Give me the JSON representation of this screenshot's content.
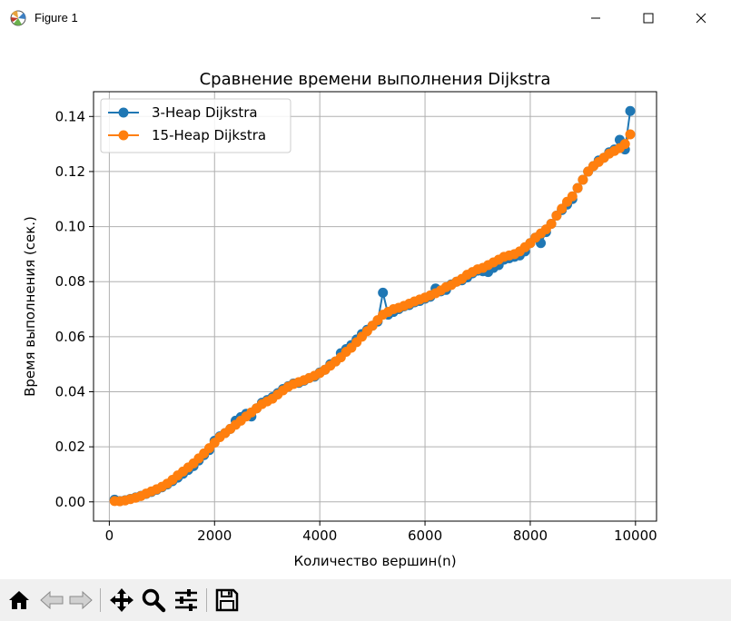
{
  "window": {
    "title": "Figure 1"
  },
  "toolbar": {
    "buttons": [
      {
        "name": "home-button",
        "icon": "home-icon"
      },
      {
        "name": "back-button",
        "icon": "arrow-left-icon"
      },
      {
        "name": "forward-button",
        "icon": "arrow-right-icon"
      },
      {
        "name": "pan-button",
        "icon": "move-icon"
      },
      {
        "name": "zoom-button",
        "icon": "magnifier-icon"
      },
      {
        "name": "configure-subplots-button",
        "icon": "sliders-icon"
      },
      {
        "name": "save-button",
        "icon": "floppy-disk-icon"
      }
    ]
  },
  "colors": {
    "series1": "#1f77b4",
    "series2": "#ff7f0e",
    "grid": "#b0b0b0",
    "toolbar": "#f0f0f0"
  },
  "chart_data": {
    "type": "line",
    "title": "Сравнение времени выполнения Dijkstra",
    "xlabel": "Количество вершин(n)",
    "ylabel": "Время выполнения (сек.)",
    "xlim": [
      -300,
      10400
    ],
    "ylim": [
      -0.007,
      0.149
    ],
    "xticks": [
      0,
      2000,
      4000,
      6000,
      8000,
      10000
    ],
    "xtick_labels": [
      "0",
      "2000",
      "4000",
      "6000",
      "8000",
      "10000"
    ],
    "yticks": [
      0,
      0.02,
      0.04,
      0.06,
      0.08,
      0.1,
      0.12,
      0.14
    ],
    "ytick_labels": [
      "0.00",
      "0.02",
      "0.04",
      "0.06",
      "0.08",
      "0.10",
      "0.12",
      "0.14"
    ],
    "grid": true,
    "legend_position": "upper-left",
    "x": [
      100,
      200,
      300,
      400,
      500,
      600,
      700,
      800,
      900,
      1000,
      1100,
      1200,
      1300,
      1400,
      1500,
      1600,
      1700,
      1800,
      1900,
      2000,
      2100,
      2200,
      2300,
      2400,
      2500,
      2600,
      2700,
      2800,
      2900,
      3000,
      3100,
      3200,
      3300,
      3400,
      3500,
      3600,
      3700,
      3800,
      3900,
      4000,
      4100,
      4200,
      4300,
      4400,
      4500,
      4600,
      4700,
      4800,
      4900,
      5000,
      5100,
      5200,
      5300,
      5400,
      5500,
      5600,
      5700,
      5800,
      5900,
      6000,
      6100,
      6200,
      6300,
      6400,
      6500,
      6600,
      6700,
      6800,
      6900,
      7000,
      7100,
      7200,
      7300,
      7400,
      7500,
      7600,
      7700,
      7800,
      7900,
      8000,
      8100,
      8200,
      8300,
      8400,
      8500,
      8600,
      8700,
      8800,
      8900,
      9000,
      9100,
      9200,
      9300,
      9400,
      9500,
      9600,
      9700,
      9800,
      9900
    ],
    "series": [
      {
        "name": "3-Heap Dijkstra",
        "color": "#1f77b4",
        "values": [
          0.0008,
          0.0003,
          0.0006,
          0.0011,
          0.0016,
          0.0022,
          0.0029,
          0.0036,
          0.0044,
          0.0053,
          0.0063,
          0.0075,
          0.0088,
          0.0102,
          0.0116,
          0.013,
          0.015,
          0.017,
          0.0188,
          0.0222,
          0.0238,
          0.025,
          0.0265,
          0.0295,
          0.0308,
          0.032,
          0.031,
          0.034,
          0.036,
          0.037,
          0.038,
          0.0395,
          0.041,
          0.042,
          0.043,
          0.0432,
          0.044,
          0.045,
          0.0455,
          0.047,
          0.048,
          0.05,
          0.051,
          0.054,
          0.0555,
          0.057,
          0.059,
          0.061,
          0.0625,
          0.064,
          0.0655,
          0.076,
          0.068,
          0.069,
          0.07,
          0.071,
          0.0715,
          0.0725,
          0.073,
          0.0738,
          0.0745,
          0.0775,
          0.0765,
          0.077,
          0.079,
          0.08,
          0.0805,
          0.0815,
          0.083,
          0.084,
          0.0838,
          0.0835,
          0.085,
          0.086,
          0.088,
          0.0885,
          0.089,
          0.0895,
          0.091,
          0.094,
          0.096,
          0.094,
          0.098,
          0.101,
          0.104,
          0.106,
          0.108,
          0.11,
          0.114,
          0.117,
          0.12,
          0.122,
          0.124,
          0.125,
          0.127,
          0.128,
          0.1315,
          0.128,
          0.142
        ]
      },
      {
        "name": "15-Heap Dijkstra",
        "color": "#ff7f0e",
        "values": [
          0.0003,
          0.0002,
          0.0005,
          0.001,
          0.0015,
          0.0021,
          0.003,
          0.0038,
          0.0046,
          0.0055,
          0.0066,
          0.008,
          0.0096,
          0.011,
          0.0125,
          0.014,
          0.0158,
          0.0176,
          0.0195,
          0.0215,
          0.0235,
          0.025,
          0.0265,
          0.028,
          0.0295,
          0.031,
          0.0325,
          0.034,
          0.0355,
          0.0365,
          0.0375,
          0.039,
          0.0405,
          0.0418,
          0.0428,
          0.0435,
          0.0442,
          0.045,
          0.0458,
          0.0468,
          0.048,
          0.0495,
          0.051,
          0.0525,
          0.0545,
          0.056,
          0.058,
          0.06,
          0.062,
          0.064,
          0.066,
          0.068,
          0.069,
          0.07,
          0.0705,
          0.0712,
          0.072,
          0.0728,
          0.0735,
          0.0742,
          0.075,
          0.0758,
          0.0768,
          0.078,
          0.0788,
          0.08,
          0.081,
          0.0825,
          0.0835,
          0.0845,
          0.085,
          0.086,
          0.087,
          0.088,
          0.089,
          0.0895,
          0.09,
          0.091,
          0.0925,
          0.094,
          0.096,
          0.0975,
          0.099,
          0.101,
          0.104,
          0.1065,
          0.109,
          0.111,
          0.114,
          0.117,
          0.12,
          0.122,
          0.1235,
          0.125,
          0.1265,
          0.1275,
          0.1285,
          0.13,
          0.1335
        ]
      }
    ]
  }
}
